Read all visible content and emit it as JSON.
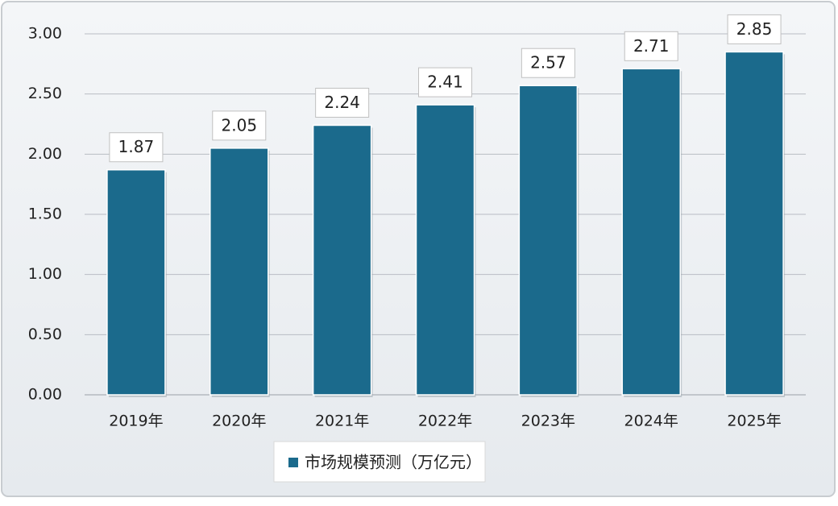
{
  "chart_data": {
    "type": "bar",
    "categories": [
      "2019年",
      "2020年",
      "2021年",
      "2022年",
      "2023年",
      "2024年",
      "2025年"
    ],
    "series": [
      {
        "name": "市场规模预测（万亿元）",
        "color": "#1b6a8c",
        "values": [
          1.87,
          2.05,
          2.24,
          2.41,
          2.57,
          2.71,
          2.85
        ]
      }
    ],
    "ylim": [
      0,
      3
    ],
    "yticks": [
      {
        "value": 0,
        "label": "0.00"
      },
      {
        "value": 0.5,
        "label": "0.50"
      },
      {
        "value": 1,
        "label": "1.00"
      },
      {
        "value": 1.5,
        "label": "1.50"
      },
      {
        "value": 2,
        "label": "2.00"
      },
      {
        "value": 2.5,
        "label": "2.50"
      },
      {
        "value": 3,
        "label": "3.00"
      }
    ],
    "grid": true,
    "legend": "bottom"
  }
}
